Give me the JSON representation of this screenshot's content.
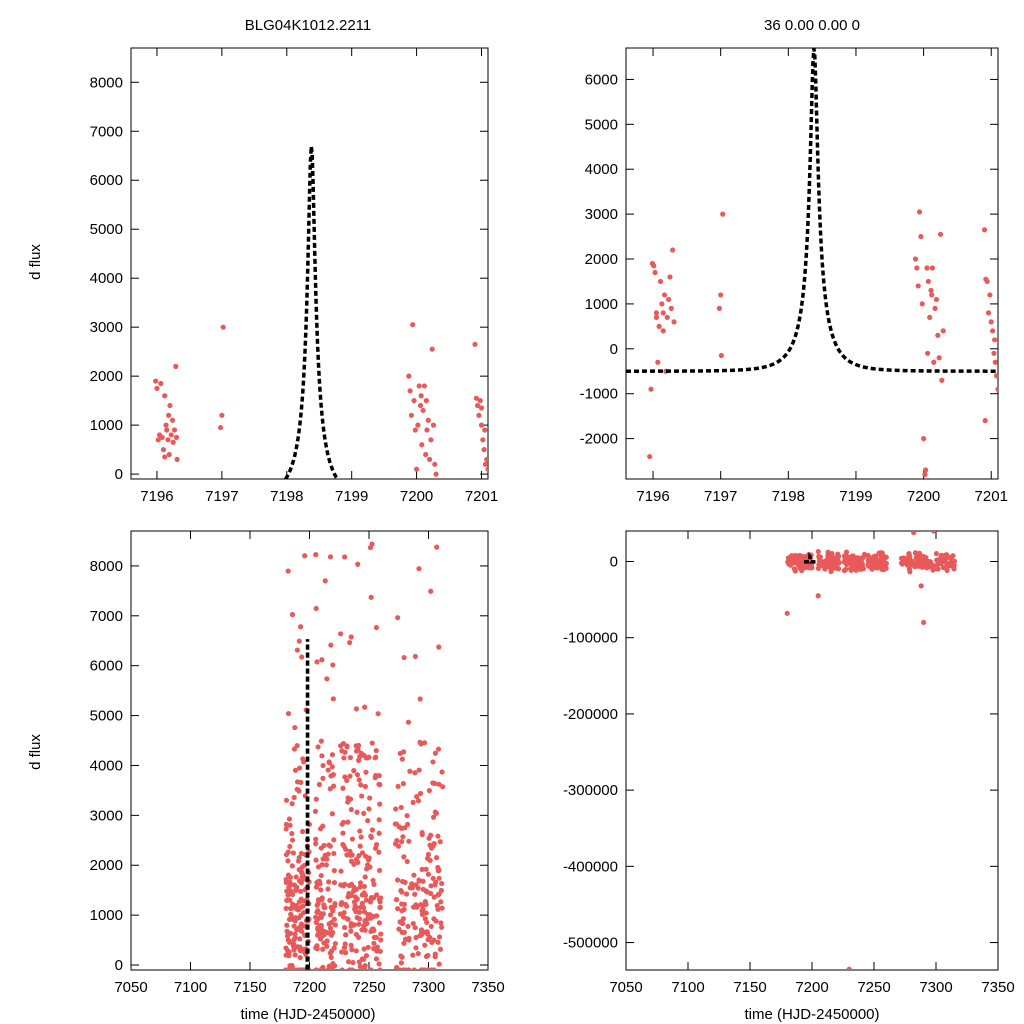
{
  "figure_title": "BLG04K1012.2211",
  "fit_params": "36  0.00  0.00  0",
  "colors": {
    "data": "#e85a5a",
    "model": "#000000"
  },
  "model": {
    "t0": 7198.38,
    "tE": 0.42,
    "peak": 6700,
    "baseline": -500
  },
  "chart_data": [
    {
      "id": "top-left",
      "type": "scatter",
      "title": "BLG04K1012.2211",
      "xlabel": "",
      "ylabel": "d flux",
      "xlim": [
        7195.6,
        7201.1
      ],
      "ylim": [
        -100,
        8700
      ],
      "xticks": [
        7196,
        7197,
        7198,
        7199,
        7200,
        7201
      ],
      "yticks": [
        0,
        1000,
        2000,
        3000,
        4000,
        5000,
        6000,
        7000,
        8000
      ],
      "points": [
        [
          7195.98,
          1900
        ],
        [
          7196.0,
          1750
        ],
        [
          7196.02,
          700
        ],
        [
          7196.04,
          800
        ],
        [
          7196.06,
          1850
        ],
        [
          7196.08,
          750
        ],
        [
          7196.1,
          500
        ],
        [
          7196.12,
          1600
        ],
        [
          7196.14,
          1000
        ],
        [
          7196.15,
          900
        ],
        [
          7196.17,
          700
        ],
        [
          7196.19,
          400
        ],
        [
          7196.2,
          1400
        ],
        [
          7196.22,
          800
        ],
        [
          7196.24,
          1100
        ],
        [
          7196.25,
          650
        ],
        [
          7196.27,
          900
        ],
        [
          7196.29,
          2200
        ],
        [
          7196.3,
          750
        ],
        [
          7196.31,
          300
        ],
        [
          7196.12,
          350
        ],
        [
          7196.18,
          1200
        ],
        [
          7197.02,
          3000
        ],
        [
          7197.0,
          1200
        ],
        [
          7196.98,
          950
        ],
        [
          7199.88,
          2000
        ],
        [
          7199.9,
          1700
        ],
        [
          7199.92,
          1200
        ],
        [
          7199.94,
          3050
        ],
        [
          7199.96,
          1500
        ],
        [
          7199.98,
          900
        ],
        [
          7200.0,
          100
        ],
        [
          7200.02,
          1000
        ],
        [
          7200.04,
          1800
        ],
        [
          7200.06,
          1400
        ],
        [
          7200.08,
          600
        ],
        [
          7200.1,
          1300
        ],
        [
          7200.12,
          1800
        ],
        [
          7200.14,
          400
        ],
        [
          7200.16,
          900
        ],
        [
          7200.18,
          1100
        ],
        [
          7200.2,
          300
        ],
        [
          7200.22,
          700
        ],
        [
          7200.24,
          2550
        ],
        [
          7200.26,
          1000
        ],
        [
          7200.28,
          200
        ],
        [
          7200.3,
          0
        ],
        [
          7200.07,
          1600
        ],
        [
          7200.15,
          1500
        ],
        [
          7200.9,
          2650
        ],
        [
          7200.92,
          1550
        ],
        [
          7200.94,
          1400
        ],
        [
          7200.96,
          1200
        ],
        [
          7200.98,
          1500
        ],
        [
          7201.0,
          1000
        ],
        [
          7201.02,
          700
        ],
        [
          7201.04,
          500
        ],
        [
          7201.06,
          200
        ],
        [
          7201.08,
          300
        ],
        [
          7201.1,
          100
        ],
        [
          7201.05,
          900
        ],
        [
          7201.0,
          1350
        ]
      ]
    },
    {
      "id": "top-right",
      "type": "scatter",
      "title": "36  0.00  0.00  0",
      "xlabel": "",
      "ylabel": "",
      "xlim": [
        7195.6,
        7201.1
      ],
      "ylim": [
        -2900,
        6700
      ],
      "xticks": [
        7196,
        7197,
        7198,
        7199,
        7200,
        7201
      ],
      "yticks": [
        -2000,
        -1000,
        0,
        1000,
        2000,
        3000,
        4000,
        5000,
        6000
      ],
      "points": [
        [
          7195.95,
          -2400
        ],
        [
          7195.97,
          -900
        ],
        [
          7195.99,
          1900
        ],
        [
          7196.01,
          1850
        ],
        [
          7196.03,
          1700
        ],
        [
          7196.05,
          700
        ],
        [
          7196.07,
          -300
        ],
        [
          7196.09,
          500
        ],
        [
          7196.11,
          1500
        ],
        [
          7196.13,
          1000
        ],
        [
          7196.15,
          800
        ],
        [
          7196.17,
          1200
        ],
        [
          7196.19,
          -500
        ],
        [
          7196.21,
          700
        ],
        [
          7196.23,
          1100
        ],
        [
          7196.25,
          1600
        ],
        [
          7196.27,
          900
        ],
        [
          7196.29,
          2200
        ],
        [
          7196.31,
          600
        ],
        [
          7196.15,
          400
        ],
        [
          7196.05,
          800
        ],
        [
          7197.03,
          3000
        ],
        [
          7197.0,
          1200
        ],
        [
          7196.98,
          900
        ],
        [
          7197.01,
          -150
        ],
        [
          7199.88,
          2000
        ],
        [
          7199.9,
          1800
        ],
        [
          7199.92,
          1400
        ],
        [
          7199.94,
          3050
        ],
        [
          7199.96,
          2500
        ],
        [
          7199.98,
          1000
        ],
        [
          7200.0,
          -2000
        ],
        [
          7200.02,
          -2800
        ],
        [
          7200.03,
          -2700
        ],
        [
          7200.05,
          1800
        ],
        [
          7200.07,
          1500
        ],
        [
          7200.09,
          700
        ],
        [
          7200.11,
          1300
        ],
        [
          7200.13,
          1800
        ],
        [
          7200.15,
          -300
        ],
        [
          7200.17,
          900
        ],
        [
          7200.19,
          1100
        ],
        [
          7200.21,
          300
        ],
        [
          7200.23,
          -200
        ],
        [
          7200.25,
          2550
        ],
        [
          7200.27,
          -700
        ],
        [
          7200.29,
          400
        ],
        [
          7200.06,
          -100
        ],
        [
          7200.12,
          1200
        ],
        [
          7200.9,
          2650
        ],
        [
          7200.91,
          -1600
        ],
        [
          7200.92,
          1550
        ],
        [
          7200.94,
          1500
        ],
        [
          7200.96,
          800
        ],
        [
          7200.98,
          1200
        ],
        [
          7201.0,
          600
        ],
        [
          7201.02,
          400
        ],
        [
          7201.04,
          -100
        ],
        [
          7201.06,
          -300
        ],
        [
          7201.08,
          -600
        ],
        [
          7201.1,
          -900
        ],
        [
          7201.05,
          200
        ]
      ]
    },
    {
      "id": "bottom-left",
      "type": "scatter",
      "title": "",
      "xlabel": "time (HJD-2450000)",
      "ylabel": "d flux",
      "xlim": [
        7050,
        7350
      ],
      "ylim": [
        -100,
        8700
      ],
      "xticks": [
        7050,
        7100,
        7150,
        7200,
        7250,
        7300,
        7350
      ],
      "yticks": [
        0,
        1000,
        2000,
        3000,
        4000,
        5000,
        6000,
        7000,
        8000
      ],
      "points": []
    },
    {
      "id": "bottom-right",
      "type": "scatter",
      "title": "",
      "xlabel": "time (HJD-2450000)",
      "ylabel": "",
      "xlim": [
        7050,
        7350
      ],
      "ylim": [
        -536000,
        40000
      ],
      "xticks": [
        7050,
        7100,
        7150,
        7200,
        7250,
        7300,
        7350
      ],
      "yticks": [
        -500000,
        -400000,
        -300000,
        -200000,
        -100000,
        0
      ],
      "points": [
        [
          7180,
          -68000
        ],
        [
          7205,
          -45000
        ],
        [
          7230,
          -535000
        ],
        [
          7290,
          -80000
        ],
        [
          7288,
          -32000
        ],
        [
          7282,
          38000
        ],
        [
          7298,
          40000
        ]
      ]
    }
  ]
}
